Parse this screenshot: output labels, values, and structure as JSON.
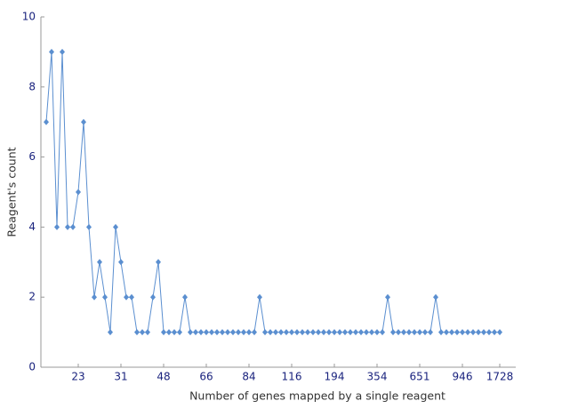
{
  "chart_data": {
    "type": "line",
    "x_label": "Number of genes mapped by a single reagent",
    "y_label": "Reagent's count",
    "categories": [
      null,
      null,
      null,
      null,
      null,
      null,
      "23",
      null,
      null,
      null,
      null,
      null,
      null,
      null,
      "31",
      null,
      null,
      null,
      null,
      null,
      null,
      null,
      "48",
      null,
      null,
      null,
      null,
      null,
      null,
      null,
      "66",
      null,
      null,
      null,
      null,
      null,
      null,
      null,
      "84",
      null,
      null,
      null,
      null,
      null,
      null,
      null,
      "116",
      null,
      null,
      null,
      null,
      null,
      null,
      null,
      "194",
      null,
      null,
      null,
      null,
      null,
      null,
      null,
      "354",
      null,
      null,
      null,
      null,
      null,
      null,
      null,
      "651",
      null,
      null,
      null,
      null,
      null,
      null,
      null,
      "946",
      null,
      null,
      null,
      null,
      null,
      null,
      "1728"
    ],
    "values": [
      7,
      9,
      4,
      9,
      4,
      4,
      5,
      7,
      4,
      2,
      3,
      2,
      1,
      4,
      3,
      2,
      2,
      1,
      1,
      1,
      2,
      3,
      1,
      1,
      1,
      1,
      2,
      1,
      1,
      1,
      1,
      1,
      1,
      1,
      1,
      1,
      1,
      1,
      1,
      1,
      2,
      1,
      1,
      1,
      1,
      1,
      1,
      1,
      1,
      1,
      1,
      1,
      1,
      1,
      1,
      1,
      1,
      1,
      1,
      1,
      1,
      1,
      1,
      1,
      2,
      1,
      1,
      1,
      1,
      1,
      1,
      1,
      1,
      2,
      1,
      1,
      1,
      1,
      1,
      1,
      1,
      1,
      1,
      1,
      1,
      1
    ],
    "color": "#5b8fd0",
    "ylim": [
      0,
      10
    ],
    "yticks": [
      0,
      2,
      4,
      6,
      8,
      10
    ],
    "grid": false
  }
}
